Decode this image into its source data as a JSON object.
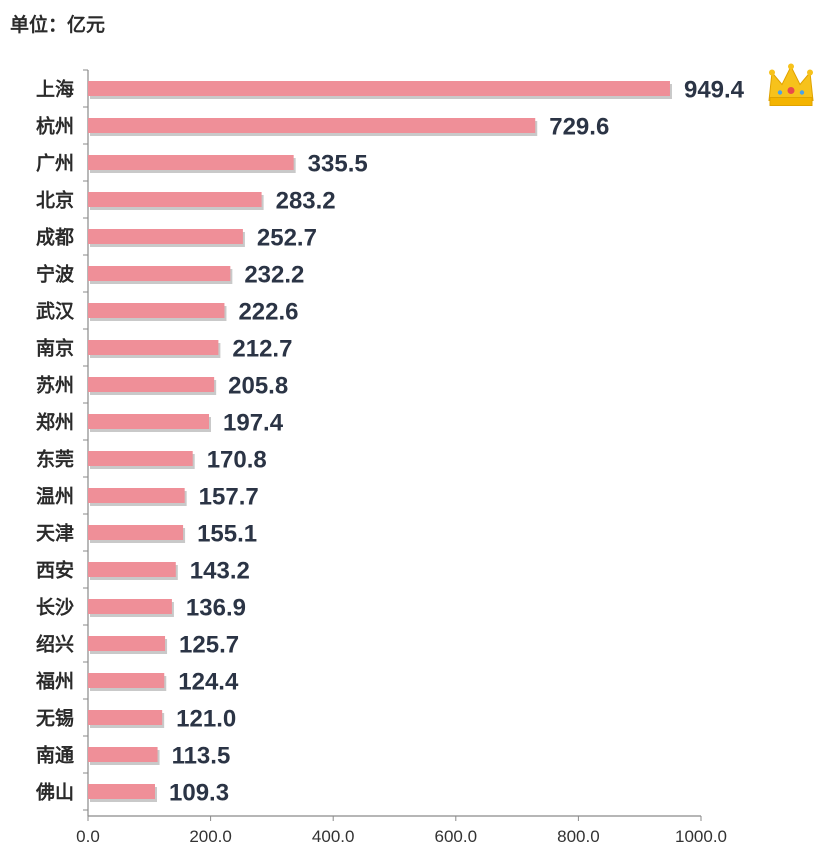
{
  "unit": "单位：亿元",
  "colors": {
    "bar": "#ef8f98",
    "bar_shadow": "#c9c9c9",
    "axis": "#8a8a8a",
    "crown": "#f7c21b"
  },
  "icons": {
    "top_marker": "crown-icon"
  },
  "chart_data": {
    "type": "bar",
    "orientation": "horizontal",
    "title": "",
    "ylabel": "单位：亿元",
    "xlim": [
      0,
      1000
    ],
    "xticks": [
      "0.0",
      "200.0",
      "400.0",
      "600.0",
      "800.0",
      "1000.0"
    ],
    "categories": [
      "上海",
      "杭州",
      "广州",
      "北京",
      "成都",
      "宁波",
      "武汉",
      "南京",
      "苏州",
      "郑州",
      "东莞",
      "温州",
      "天津",
      "西安",
      "长沙",
      "绍兴",
      "福州",
      "无锡",
      "南通",
      "佛山"
    ],
    "values": [
      949.4,
      729.6,
      335.5,
      283.2,
      252.7,
      232.2,
      222.6,
      212.7,
      205.8,
      197.4,
      170.8,
      157.7,
      155.1,
      143.2,
      136.9,
      125.7,
      124.4,
      121.0,
      113.5,
      109.3
    ],
    "value_labels": [
      "949.4",
      "729.6",
      "335.5",
      "283.2",
      "252.7",
      "232.2",
      "222.6",
      "212.7",
      "205.8",
      "197.4",
      "170.8",
      "157.7",
      "155.1",
      "143.2",
      "136.9",
      "125.7",
      "124.4",
      "121.0",
      "113.5",
      "109.3"
    ]
  }
}
